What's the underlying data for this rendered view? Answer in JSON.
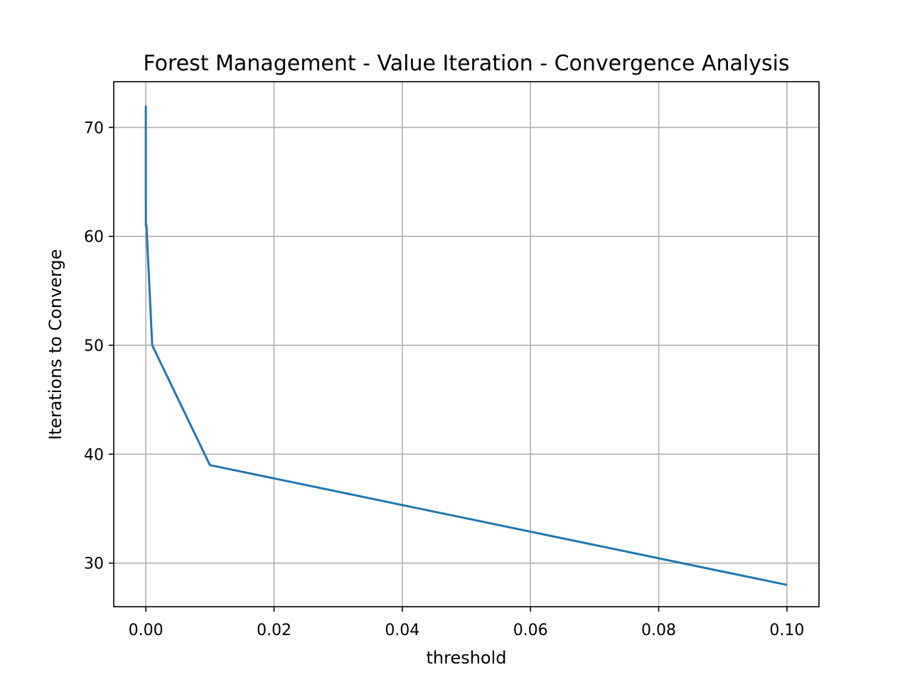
{
  "chart_data": {
    "type": "line",
    "title": "Forest Management - Value Iteration - Convergence Analysis",
    "xlabel": "threshold",
    "ylabel": "Iterations to Converge",
    "xlim": [
      -0.005,
      0.105
    ],
    "ylim": [
      26,
      74.2
    ],
    "xticks": [
      0.0,
      0.02,
      0.04,
      0.06,
      0.08,
      0.1
    ],
    "xtick_labels": [
      "0.00",
      "0.02",
      "0.04",
      "0.06",
      "0.08",
      "0.10"
    ],
    "yticks": [
      30,
      40,
      50,
      60,
      70
    ],
    "ytick_labels": [
      "30",
      "40",
      "50",
      "60",
      "70"
    ],
    "grid": true,
    "legend": "none",
    "series": [
      {
        "color": "#1f77b4",
        "x": [
          1e-08,
          1e-07,
          1e-06,
          1e-05,
          0.0001,
          0.001,
          0.01,
          0.1
        ],
        "y": [
          72,
          69,
          65,
          61,
          61,
          50,
          39,
          28
        ]
      }
    ]
  }
}
